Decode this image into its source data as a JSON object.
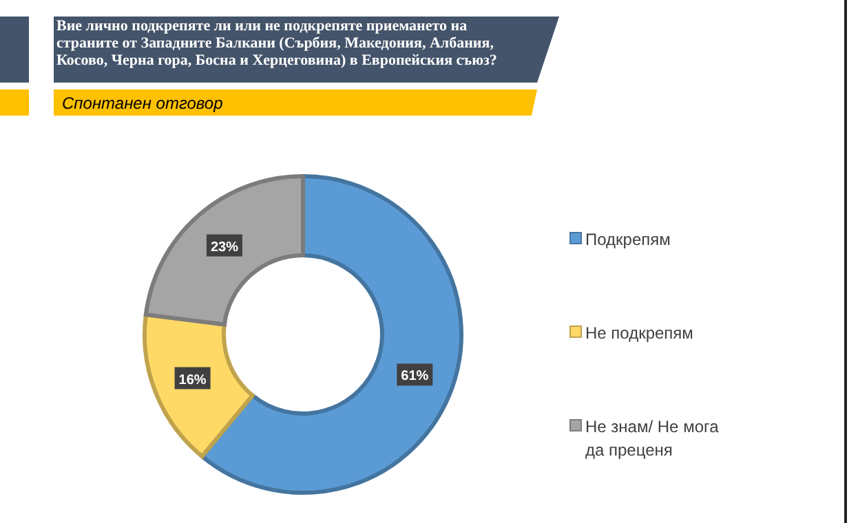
{
  "chart_data": {
    "type": "donut",
    "title": "Вие лично подкрепяте ли или не подкрепяте приемането на страните от Западните Балкани (Сърбия, Македония, Албания, Косово, Черна гора, Босна и Херцеговина) в Европейския съюз?",
    "subtitle": "Спонтанен отговор",
    "categories": [
      "Подкрепям",
      "Не подкрепям",
      "Не знам/ Не мога да преценя"
    ],
    "values": [
      61,
      16,
      23
    ],
    "colors": [
      "#5b9bd5",
      "#ffd966",
      "#a5a5a5"
    ],
    "value_labels": [
      "61%",
      "16%",
      "23%"
    ],
    "legend": "right"
  }
}
